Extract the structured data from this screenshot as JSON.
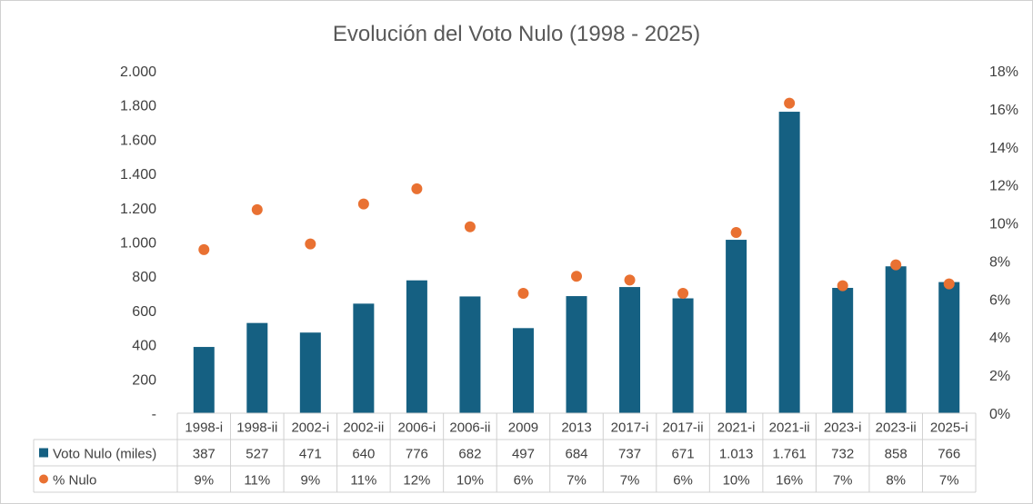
{
  "chart_data": {
    "type": "bar",
    "title": "Evolución del Voto Nulo (1998 - 2025)",
    "categories": [
      "1998-i",
      "1998-ii",
      "2002-i",
      "2002-ii",
      "2006-i",
      "2006-ii",
      "2009",
      "2013",
      "2017-i",
      "2017-ii",
      "2021-i",
      "2021-ii",
      "2023-i",
      "2023-ii",
      "2025-i"
    ],
    "series": [
      {
        "name": "Voto Nulo (miles)",
        "type": "bar",
        "axis": "left",
        "color": "#156082",
        "values": [
          387,
          527,
          471,
          640,
          776,
          682,
          497,
          684,
          737,
          671,
          1013,
          1761,
          732,
          858,
          766
        ],
        "labels": [
          "387",
          "527",
          "471",
          "640",
          "776",
          "682",
          "497",
          "684",
          "737",
          "671",
          "1.013",
          "1.761",
          "732",
          "858",
          "766"
        ]
      },
      {
        "name": "% Nulo",
        "type": "scatter",
        "axis": "right",
        "color": "#E97132",
        "values": [
          8.6,
          10.7,
          8.9,
          11.0,
          11.8,
          9.8,
          6.3,
          7.2,
          7.0,
          6.3,
          9.5,
          16.3,
          6.7,
          7.8,
          6.8
        ],
        "labels": [
          "9%",
          "11%",
          "9%",
          "11%",
          "12%",
          "10%",
          "6%",
          "7%",
          "7%",
          "6%",
          "10%",
          "16%",
          "7%",
          "8%",
          "7%"
        ]
      }
    ],
    "ylim_left": [
      0,
      2000
    ],
    "ylim_right": [
      0,
      18
    ],
    "left_ticks": [
      "-",
      "200",
      "400",
      "600",
      "800",
      "1.000",
      "1.200",
      "1.400",
      "1.600",
      "1.800",
      "2.000"
    ],
    "right_ticks": [
      "0%",
      "2%",
      "4%",
      "6%",
      "8%",
      "10%",
      "12%",
      "14%",
      "16%",
      "18%"
    ],
    "grid": false,
    "legend": "data-table"
  }
}
